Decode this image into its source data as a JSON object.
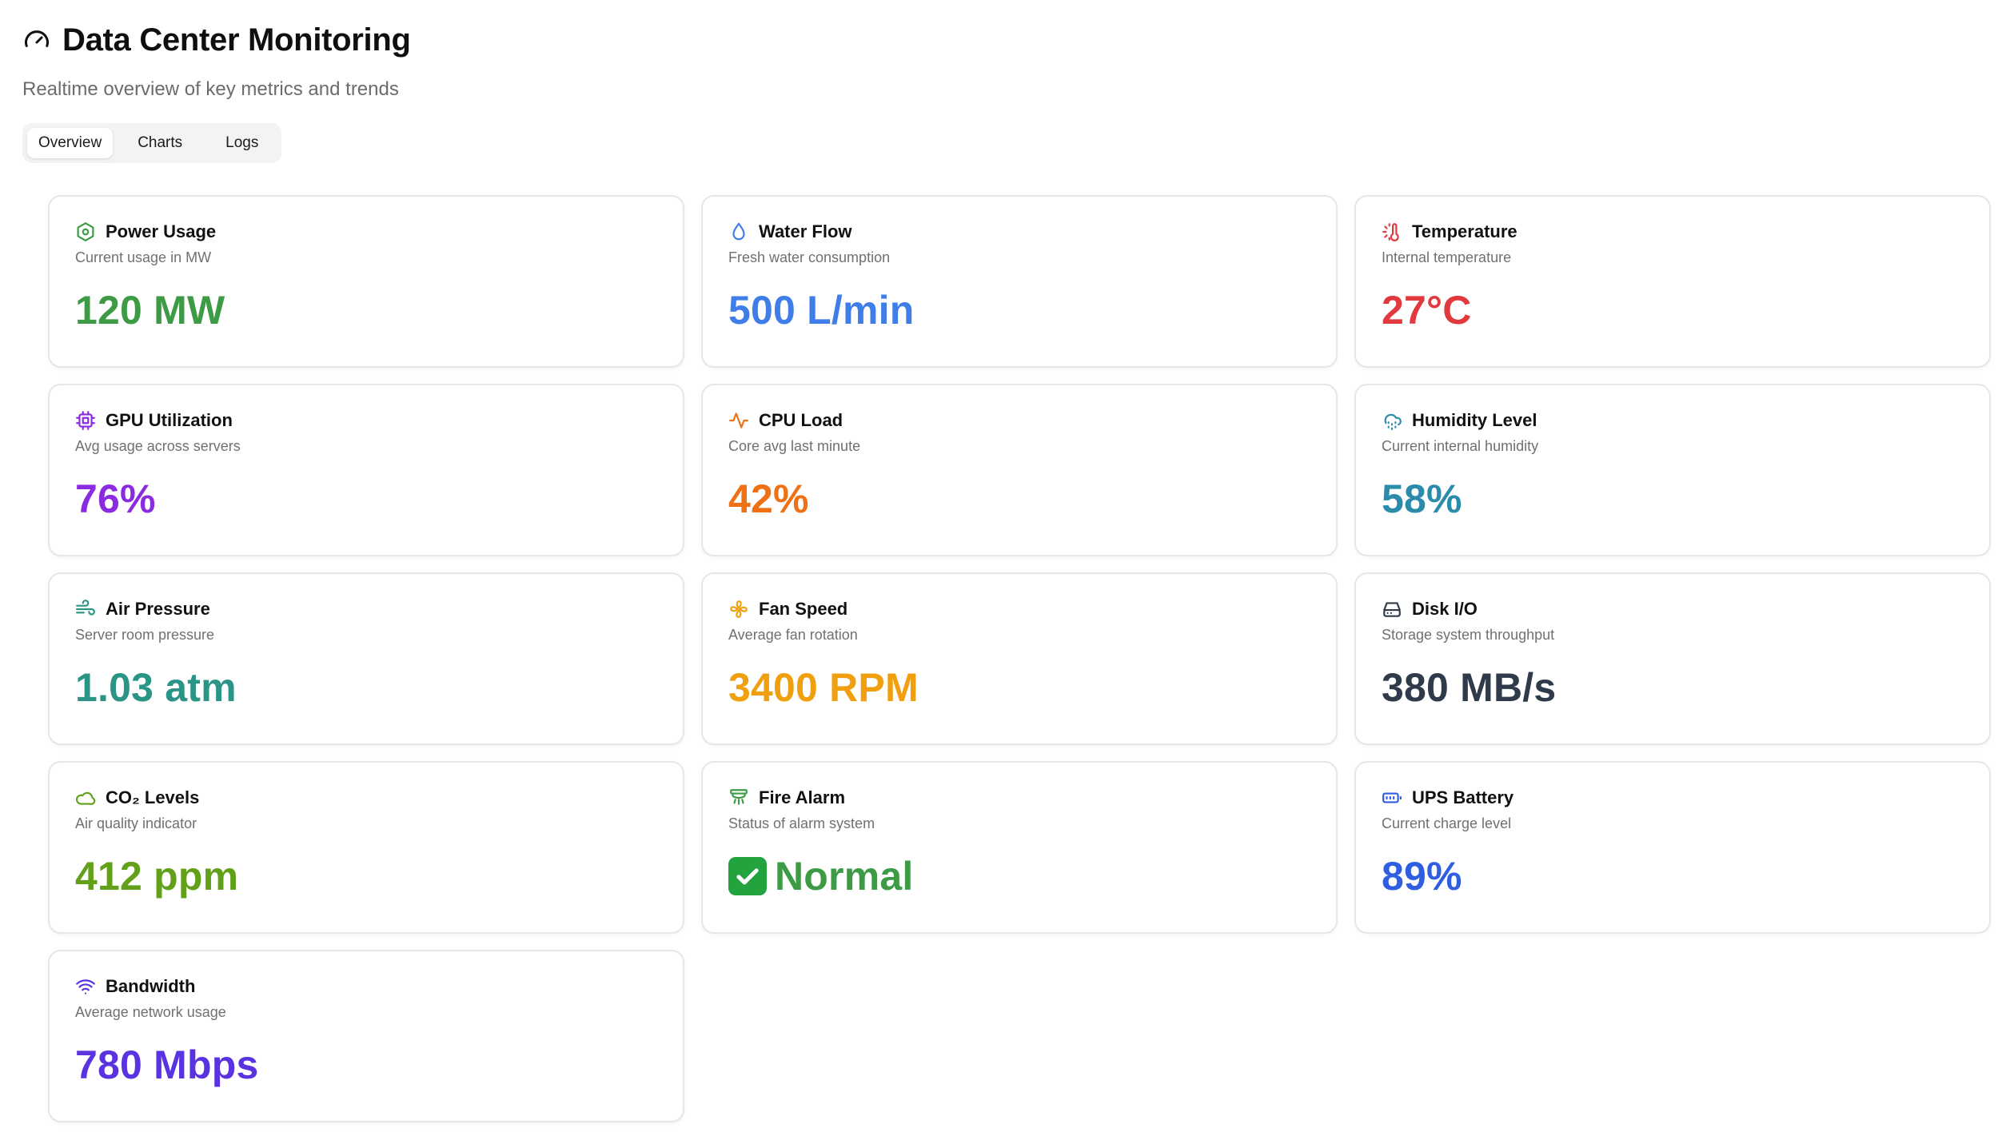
{
  "header": {
    "title": "Data Center Monitoring",
    "subtitle": "Realtime overview of key metrics and trends",
    "icon": "gauge-icon"
  },
  "tabs": [
    {
      "label": "Overview",
      "active": true
    },
    {
      "label": "Charts",
      "active": false
    },
    {
      "label": "Logs",
      "active": false
    }
  ],
  "cards": [
    {
      "title": "Power Usage",
      "desc": "Current usage in MW",
      "value": "120 MW",
      "color": "#3d9b46",
      "icon": "hexagon-icon"
    },
    {
      "title": "Water Flow",
      "desc": "Fresh water consumption",
      "value": "500 L/min",
      "color": "#3f7ee8",
      "icon": "droplet-icon"
    },
    {
      "title": "Temperature",
      "desc": "Internal temperature",
      "value": "27°C",
      "color": "#e0393e",
      "icon": "thermometer-sun-icon"
    },
    {
      "title": "GPU Utilization",
      "desc": "Avg usage across servers",
      "value": "76%",
      "color": "#8a2be2",
      "icon": "cpu-chip-icon"
    },
    {
      "title": "CPU Load",
      "desc": "Core avg last minute",
      "value": "42%",
      "color": "#ee7215",
      "icon": "activity-icon"
    },
    {
      "title": "Humidity Level",
      "desc": "Current internal humidity",
      "value": "58%",
      "color": "#2b8bab",
      "icon": "cloud-drizzle-icon"
    },
    {
      "title": "Air Pressure",
      "desc": "Server room pressure",
      "value": "1.03 atm",
      "color": "#2a9486",
      "icon": "wind-icon"
    },
    {
      "title": "Fan Speed",
      "desc": "Average fan rotation",
      "value": "3400 RPM",
      "color": "#f0a00f",
      "icon": "fan-icon"
    },
    {
      "title": "Disk I/O",
      "desc": "Storage system throughput",
      "value": "380 MB/s",
      "color": "#2f3a4b",
      "icon": "hard-drive-icon"
    },
    {
      "title": "CO₂ Levels",
      "desc": "Air quality indicator",
      "value": "412 ppm",
      "color": "#62a01a",
      "icon": "cloud-icon"
    },
    {
      "title": "Fire Alarm",
      "desc": "Status of alarm system",
      "value": "Normal",
      "color": "#3d9b46",
      "icon": "siren-icon",
      "badge": "check-mark-icon"
    },
    {
      "title": "UPS Battery",
      "desc": "Current charge level",
      "value": "89%",
      "color": "#2f5fe0",
      "icon": "battery-icon"
    },
    {
      "title": "Bandwidth",
      "desc": "Average network usage",
      "value": "780 Mbps",
      "color": "#5a33e0",
      "icon": "wifi-icon"
    }
  ]
}
